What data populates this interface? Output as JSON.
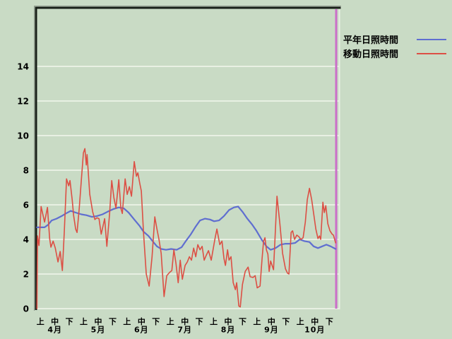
{
  "window": {
    "background": "#c9dbc5"
  },
  "legend": {
    "entries": [
      {
        "label": "平年日照時間"
      },
      {
        "label": "移動日照時間"
      }
    ]
  },
  "chart_data": {
    "type": "line",
    "title": "",
    "xlabel": "",
    "ylabel": "",
    "ylim": [
      0,
      17.4
    ],
    "yticks": [
      0,
      2,
      4,
      6,
      8,
      10,
      12,
      14
    ],
    "grid": "horizontal-white-lines",
    "legend_position": "top-right",
    "x_axis": {
      "period_labels": [
        "上",
        "中",
        "下"
      ],
      "months": [
        "4月",
        "5月",
        "6月",
        "7月",
        "8月",
        "9月",
        "10月"
      ],
      "periods_total": 21
    },
    "marker_line": {
      "label": "current-date-marker",
      "t": 20.48,
      "color": "#cb6fc9"
    },
    "colors": {
      "background": "#c9dbc5",
      "gridline": "#e8f0e3",
      "border_dark": "#161d16",
      "border_outer": "#8d988b",
      "right_edge": "#e8f0e3"
    },
    "series": [
      {
        "name": "平年日照時間",
        "color": "#5f6ed0",
        "width": 2.2,
        "points": [
          [
            -0.24,
            4.7
          ],
          [
            0.29,
            4.7
          ],
          [
            0.54,
            4.85
          ],
          [
            0.78,
            5.1
          ],
          [
            1.12,
            5.2
          ],
          [
            1.47,
            5.35
          ],
          [
            1.76,
            5.5
          ],
          [
            2.1,
            5.65
          ],
          [
            2.44,
            5.55
          ],
          [
            2.84,
            5.45
          ],
          [
            3.18,
            5.4
          ],
          [
            3.57,
            5.3
          ],
          [
            3.91,
            5.35
          ],
          [
            4.3,
            5.45
          ],
          [
            4.65,
            5.6
          ],
          [
            5.04,
            5.75
          ],
          [
            5.43,
            5.85
          ],
          [
            5.77,
            5.8
          ],
          [
            6.11,
            5.55
          ],
          [
            6.5,
            5.15
          ],
          [
            6.85,
            4.8
          ],
          [
            7.14,
            4.45
          ],
          [
            7.48,
            4.2
          ],
          [
            7.82,
            3.85
          ],
          [
            8.07,
            3.6
          ],
          [
            8.36,
            3.45
          ],
          [
            8.7,
            3.4
          ],
          [
            9.05,
            3.45
          ],
          [
            9.44,
            3.4
          ],
          [
            9.78,
            3.55
          ],
          [
            10.07,
            3.9
          ],
          [
            10.42,
            4.3
          ],
          [
            10.76,
            4.75
          ],
          [
            11.05,
            5.1
          ],
          [
            11.39,
            5.2
          ],
          [
            11.74,
            5.15
          ],
          [
            12.03,
            5.05
          ],
          [
            12.37,
            5.1
          ],
          [
            12.71,
            5.35
          ],
          [
            13.06,
            5.7
          ],
          [
            13.4,
            5.85
          ],
          [
            13.69,
            5.9
          ],
          [
            13.99,
            5.6
          ],
          [
            14.33,
            5.2
          ],
          [
            14.67,
            4.85
          ],
          [
            14.96,
            4.5
          ],
          [
            15.31,
            4.0
          ],
          [
            15.65,
            3.6
          ],
          [
            15.94,
            3.4
          ],
          [
            16.28,
            3.5
          ],
          [
            16.63,
            3.7
          ],
          [
            16.97,
            3.75
          ],
          [
            17.31,
            3.75
          ],
          [
            17.65,
            3.8
          ],
          [
            17.95,
            4.0
          ],
          [
            18.29,
            3.9
          ],
          [
            18.63,
            3.85
          ],
          [
            18.92,
            3.6
          ],
          [
            19.22,
            3.5
          ],
          [
            19.51,
            3.6
          ],
          [
            19.8,
            3.7
          ],
          [
            20.1,
            3.6
          ],
          [
            20.44,
            3.45
          ]
        ]
      },
      {
        "name": "移動日照時間",
        "color": "#dc4f44",
        "width": 1.6,
        "points": [
          [
            -0.24,
            0
          ],
          [
            -0.2,
            4.2
          ],
          [
            -0.1,
            3.65
          ],
          [
            0.05,
            5.9
          ],
          [
            0.29,
            5.0
          ],
          [
            0.49,
            5.85
          ],
          [
            0.64,
            4.05
          ],
          [
            0.73,
            3.55
          ],
          [
            0.88,
            3.9
          ],
          [
            1.03,
            3.5
          ],
          [
            1.22,
            2.7
          ],
          [
            1.37,
            3.3
          ],
          [
            1.52,
            2.2
          ],
          [
            1.66,
            4.5
          ],
          [
            1.81,
            7.5
          ],
          [
            1.96,
            7.1
          ],
          [
            2.05,
            7.4
          ],
          [
            2.2,
            6.3
          ],
          [
            2.3,
            5.4
          ],
          [
            2.44,
            4.6
          ],
          [
            2.54,
            4.4
          ],
          [
            2.69,
            5.8
          ],
          [
            2.84,
            7.5
          ],
          [
            2.98,
            9.0
          ],
          [
            3.08,
            9.25
          ],
          [
            3.18,
            8.3
          ],
          [
            3.23,
            8.9
          ],
          [
            3.42,
            6.6
          ],
          [
            3.62,
            5.6
          ],
          [
            3.77,
            5.15
          ],
          [
            3.91,
            5.25
          ],
          [
            4.06,
            5.2
          ],
          [
            4.21,
            4.3
          ],
          [
            4.45,
            5.2
          ],
          [
            4.6,
            3.6
          ],
          [
            4.79,
            5.5
          ],
          [
            4.94,
            7.4
          ],
          [
            5.09,
            6.4
          ],
          [
            5.23,
            5.8
          ],
          [
            5.43,
            7.45
          ],
          [
            5.57,
            5.8
          ],
          [
            5.67,
            5.5
          ],
          [
            5.87,
            7.5
          ],
          [
            6.01,
            6.6
          ],
          [
            6.16,
            7.05
          ],
          [
            6.31,
            6.5
          ],
          [
            6.5,
            8.5
          ],
          [
            6.65,
            7.65
          ],
          [
            6.75,
            7.85
          ],
          [
            6.89,
            7.2
          ],
          [
            6.99,
            6.8
          ],
          [
            7.14,
            4.4
          ],
          [
            7.33,
            2.0
          ],
          [
            7.53,
            1.3
          ],
          [
            7.73,
            3.0
          ],
          [
            7.92,
            5.3
          ],
          [
            8.07,
            4.6
          ],
          [
            8.21,
            4.0
          ],
          [
            8.36,
            3.2
          ],
          [
            8.56,
            0.7
          ],
          [
            8.75,
            1.9
          ],
          [
            8.95,
            2.1
          ],
          [
            9.1,
            2.2
          ],
          [
            9.24,
            3.4
          ],
          [
            9.39,
            2.6
          ],
          [
            9.54,
            1.5
          ],
          [
            9.68,
            2.8
          ],
          [
            9.83,
            1.7
          ],
          [
            10.02,
            2.5
          ],
          [
            10.17,
            2.7
          ],
          [
            10.32,
            3.0
          ],
          [
            10.46,
            2.8
          ],
          [
            10.61,
            3.5
          ],
          [
            10.76,
            3.0
          ],
          [
            10.9,
            3.7
          ],
          [
            11.05,
            3.4
          ],
          [
            11.2,
            3.6
          ],
          [
            11.34,
            2.8
          ],
          [
            11.49,
            3.1
          ],
          [
            11.64,
            3.35
          ],
          [
            11.83,
            2.8
          ],
          [
            12.08,
            4.0
          ],
          [
            12.22,
            4.6
          ],
          [
            12.42,
            3.7
          ],
          [
            12.57,
            3.9
          ],
          [
            12.71,
            2.9
          ],
          [
            12.81,
            2.5
          ],
          [
            12.96,
            3.4
          ],
          [
            13.06,
            2.8
          ],
          [
            13.2,
            3.0
          ],
          [
            13.35,
            1.5
          ],
          [
            13.5,
            1.1
          ],
          [
            13.59,
            1.5
          ],
          [
            13.74,
            0.15
          ],
          [
            13.84,
            0.1
          ],
          [
            13.99,
            1.4
          ],
          [
            14.18,
            2.15
          ],
          [
            14.38,
            2.4
          ],
          [
            14.52,
            1.85
          ],
          [
            14.72,
            1.8
          ],
          [
            14.87,
            1.9
          ],
          [
            15.01,
            1.2
          ],
          [
            15.21,
            1.3
          ],
          [
            15.35,
            2.9
          ],
          [
            15.45,
            3.9
          ],
          [
            15.55,
            4.1
          ],
          [
            15.65,
            3.4
          ],
          [
            15.75,
            3.15
          ],
          [
            15.84,
            2.15
          ],
          [
            15.94,
            2.75
          ],
          [
            16.14,
            2.25
          ],
          [
            16.38,
            6.5
          ],
          [
            16.58,
            4.9
          ],
          [
            16.77,
            3.2
          ],
          [
            16.97,
            2.3
          ],
          [
            17.11,
            2.05
          ],
          [
            17.21,
            2.0
          ],
          [
            17.36,
            4.4
          ],
          [
            17.46,
            4.5
          ],
          [
            17.6,
            4.0
          ],
          [
            17.75,
            4.25
          ],
          [
            17.9,
            4.15
          ],
          [
            18.04,
            4.0
          ],
          [
            18.19,
            4.1
          ],
          [
            18.34,
            5.0
          ],
          [
            18.48,
            6.3
          ],
          [
            18.63,
            6.95
          ],
          [
            18.78,
            6.3
          ],
          [
            18.92,
            5.5
          ],
          [
            19.07,
            4.6
          ],
          [
            19.22,
            4.05
          ],
          [
            19.32,
            4.2
          ],
          [
            19.41,
            4.0
          ],
          [
            19.56,
            6.15
          ],
          [
            19.66,
            5.55
          ],
          [
            19.76,
            5.95
          ],
          [
            19.9,
            4.9
          ],
          [
            20.05,
            4.5
          ],
          [
            20.2,
            4.3
          ],
          [
            20.29,
            4.25
          ],
          [
            20.44,
            3.8
          ]
        ]
      }
    ]
  }
}
